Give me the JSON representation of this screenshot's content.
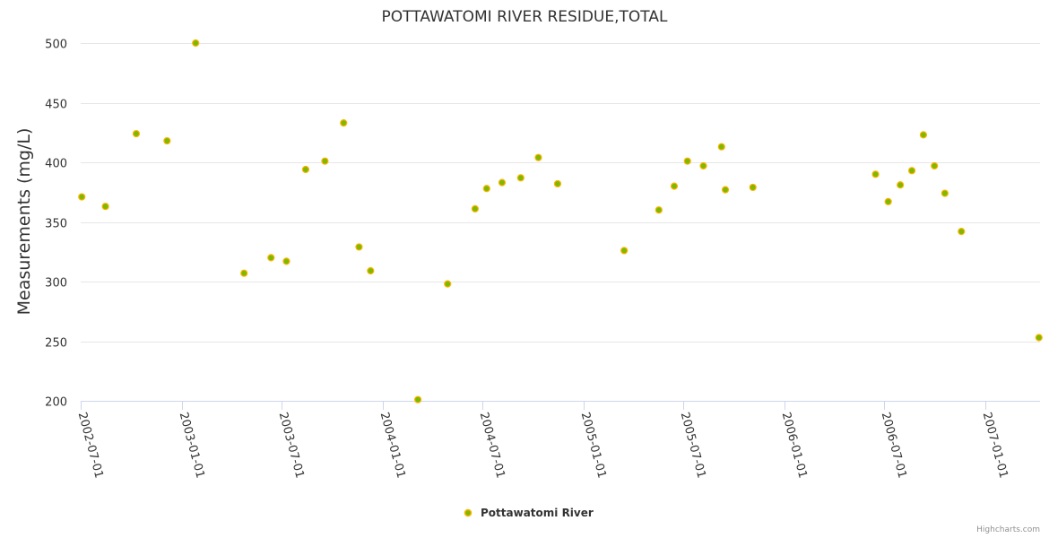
{
  "chart_data": {
    "type": "scatter",
    "title": "POTTAWATOMI RIVER RESIDUE,TOTAL",
    "xlabel": "",
    "ylabel": "Measurements (mg/L)",
    "ylim": [
      200,
      500
    ],
    "y_ticks": [
      200,
      250,
      300,
      350,
      400,
      450,
      500
    ],
    "xlim": [
      "2002-07-01",
      "2007-04-10"
    ],
    "x_ticks": [
      "2002-07-01",
      "2003-01-01",
      "2003-07-01",
      "2004-01-01",
      "2004-07-01",
      "2005-01-01",
      "2005-07-01",
      "2006-01-01",
      "2006-07-01",
      "2007-01-01"
    ],
    "grid": true,
    "legend": "bottom-center",
    "series": [
      {
        "name": "Pottawatomi River",
        "color": "#7cb900",
        "points": [
          {
            "x": "2002-07-03",
            "y": 371
          },
          {
            "x": "2002-08-15",
            "y": 363
          },
          {
            "x": "2002-10-10",
            "y": 424
          },
          {
            "x": "2002-12-05",
            "y": 418
          },
          {
            "x": "2003-01-26",
            "y": 500
          },
          {
            "x": "2003-04-24",
            "y": 307
          },
          {
            "x": "2003-06-12",
            "y": 320
          },
          {
            "x": "2003-07-10",
            "y": 317
          },
          {
            "x": "2003-08-14",
            "y": 394
          },
          {
            "x": "2003-09-18",
            "y": 401
          },
          {
            "x": "2003-10-22",
            "y": 433
          },
          {
            "x": "2003-11-19",
            "y": 329
          },
          {
            "x": "2003-12-10",
            "y": 309
          },
          {
            "x": "2004-03-05",
            "y": 201
          },
          {
            "x": "2004-04-28",
            "y": 298
          },
          {
            "x": "2004-06-17",
            "y": 361
          },
          {
            "x": "2004-07-08",
            "y": 378
          },
          {
            "x": "2004-08-05",
            "y": 383
          },
          {
            "x": "2004-09-08",
            "y": 387
          },
          {
            "x": "2004-10-10",
            "y": 404
          },
          {
            "x": "2004-11-14",
            "y": 382
          },
          {
            "x": "2005-03-15",
            "y": 326
          },
          {
            "x": "2005-05-17",
            "y": 360
          },
          {
            "x": "2005-06-14",
            "y": 380
          },
          {
            "x": "2005-07-08",
            "y": 401
          },
          {
            "x": "2005-08-06",
            "y": 397
          },
          {
            "x": "2005-09-08",
            "y": 413
          },
          {
            "x": "2005-09-15",
            "y": 377
          },
          {
            "x": "2005-11-04",
            "y": 379
          },
          {
            "x": "2006-06-15",
            "y": 390
          },
          {
            "x": "2006-07-08",
            "y": 367
          },
          {
            "x": "2006-07-30",
            "y": 381
          },
          {
            "x": "2006-08-20",
            "y": 393
          },
          {
            "x": "2006-09-10",
            "y": 423
          },
          {
            "x": "2006-09-30",
            "y": 397
          },
          {
            "x": "2006-10-19",
            "y": 374
          },
          {
            "x": "2006-11-18",
            "y": 342
          },
          {
            "x": "2007-04-08",
            "y": 253
          }
        ]
      }
    ]
  },
  "credits": "Highcharts.com"
}
